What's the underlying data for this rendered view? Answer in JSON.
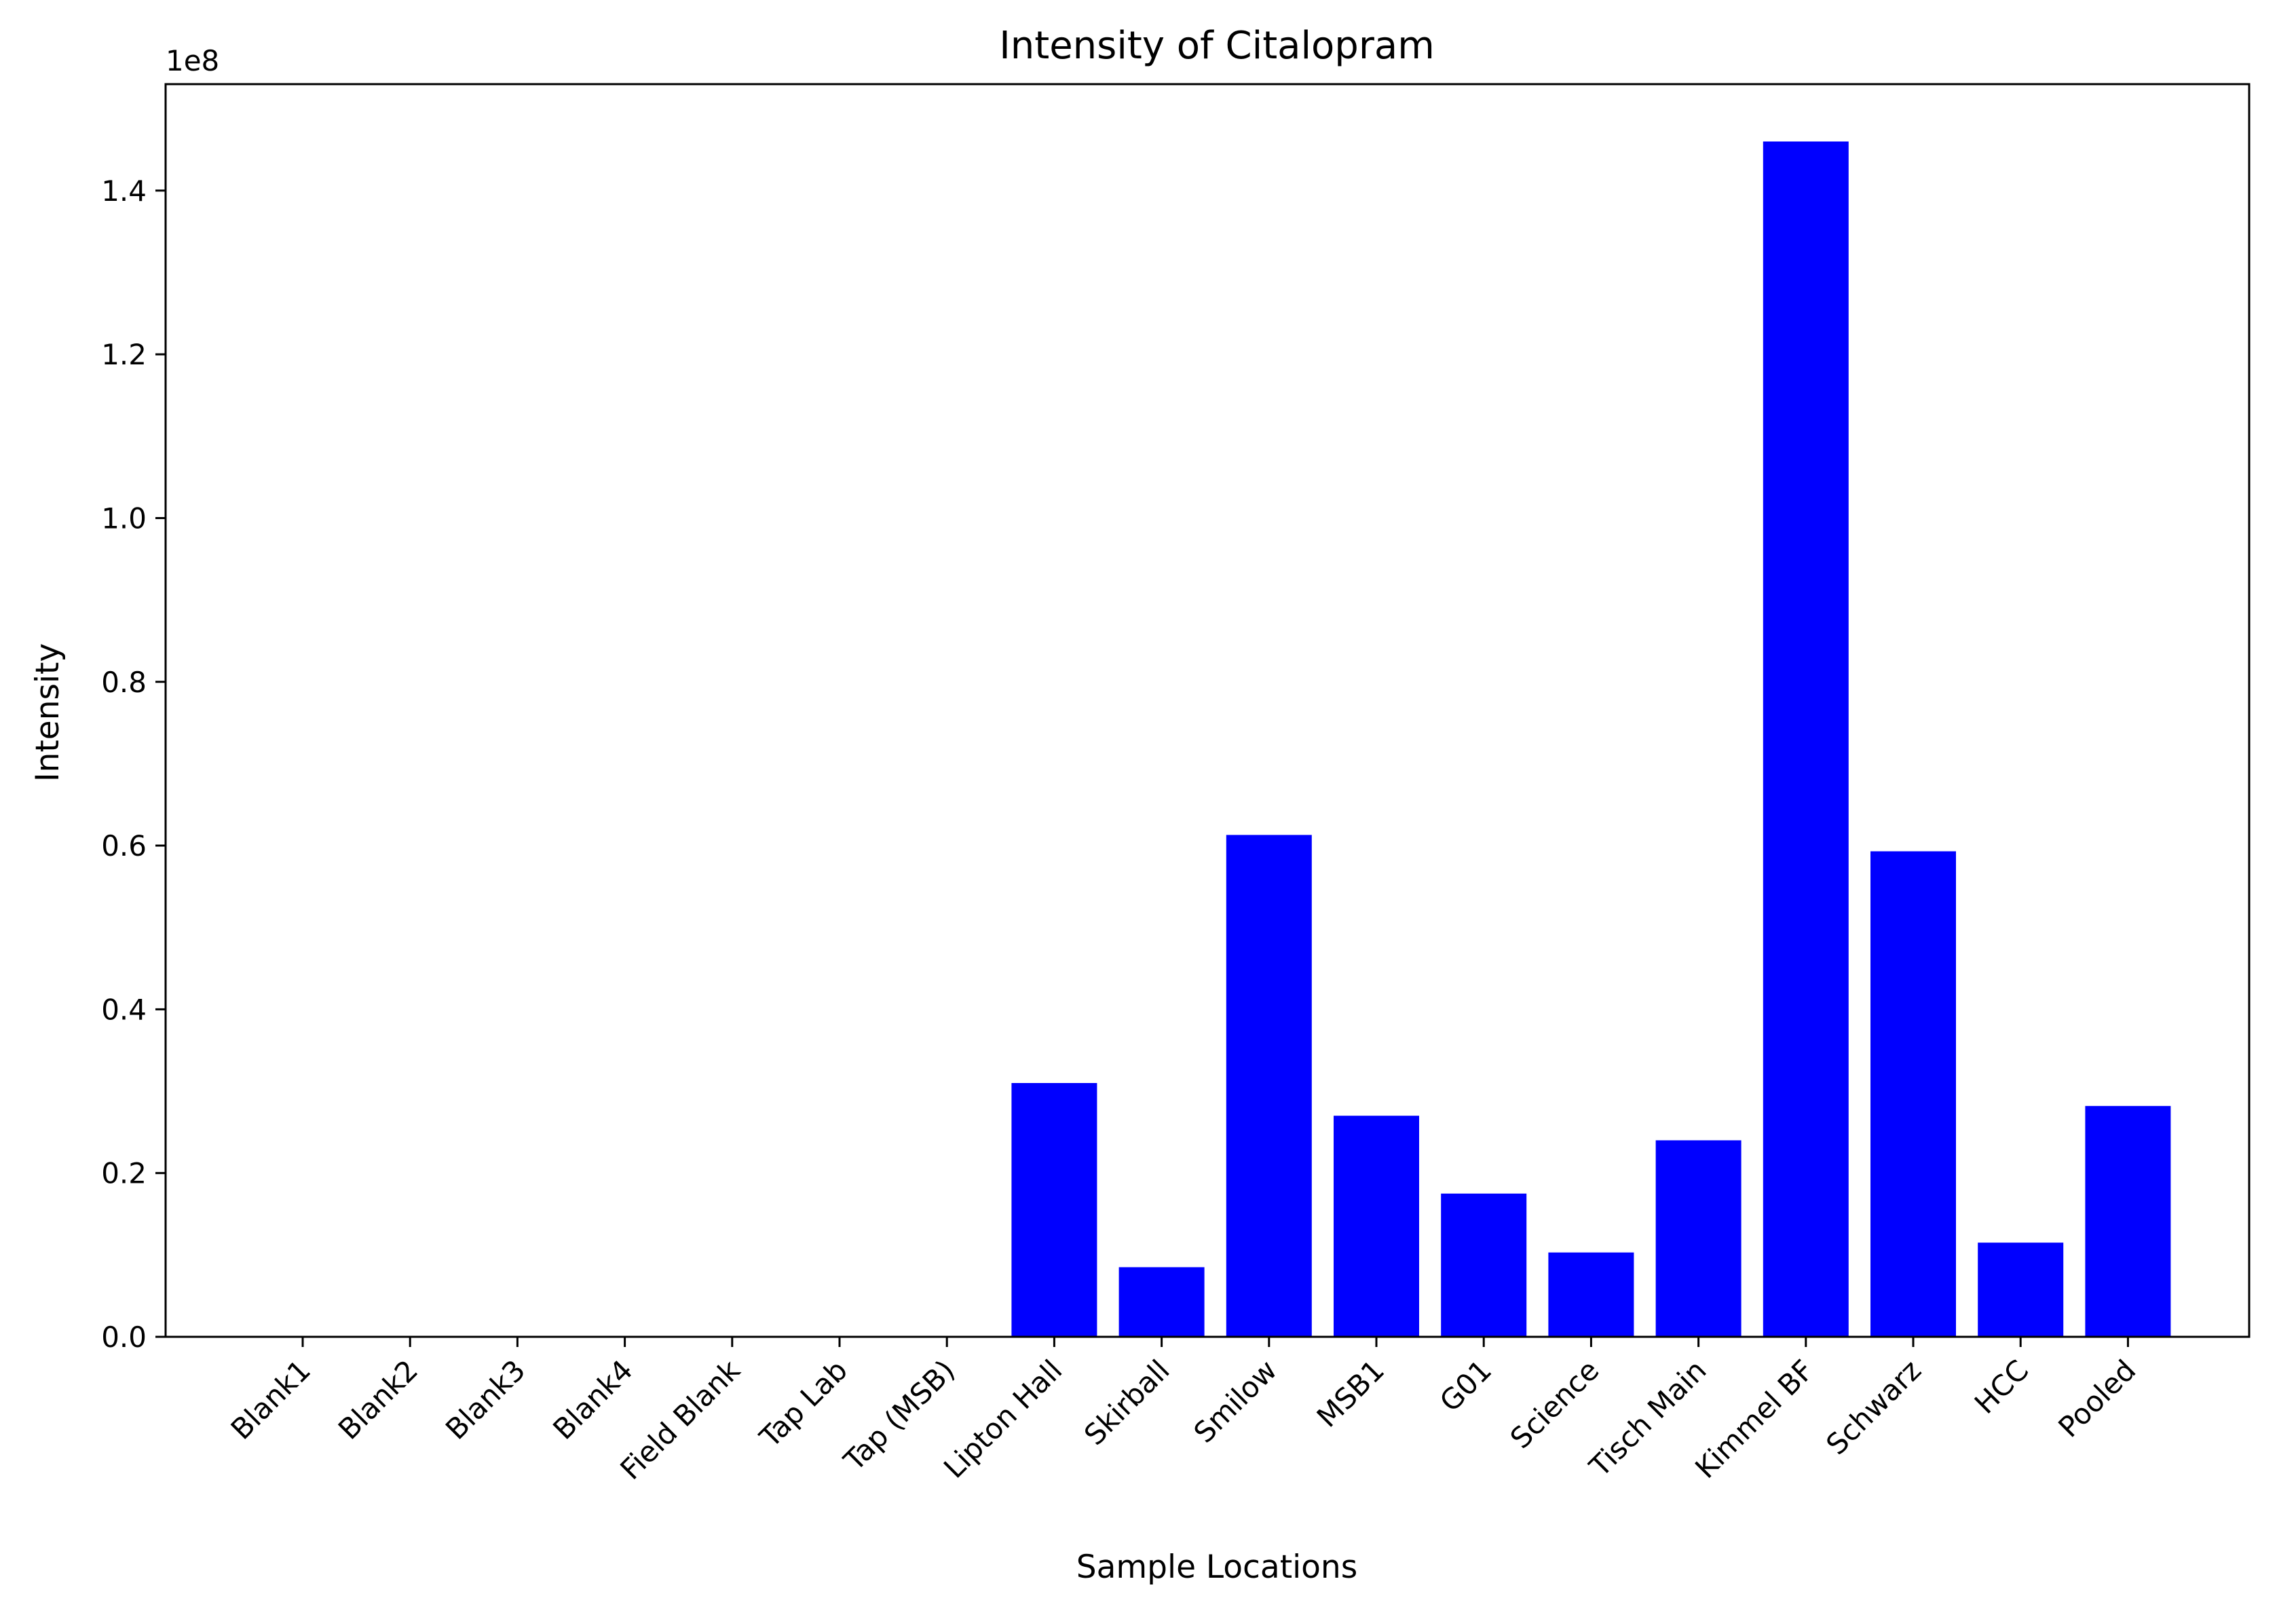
{
  "chart_data": {
    "type": "bar",
    "title": "Intensity of Citalopram",
    "xlabel": "Sample Locations",
    "ylabel": "Intensity",
    "y_offset_label": "1e8",
    "y_scale": 100000000,
    "ylim": [
      0,
      153000000
    ],
    "yticks": [
      0,
      20000000,
      40000000,
      60000000,
      80000000,
      100000000,
      120000000,
      140000000
    ],
    "ytick_labels": [
      "0.0",
      "0.2",
      "0.4",
      "0.6",
      "0.8",
      "1.0",
      "1.2",
      "1.4"
    ],
    "grid": false,
    "bar_color": "#0000ff",
    "categories": [
      "Blank1",
      "Blank2",
      "Blank3",
      "Blank4",
      "Field Blank",
      "Tap Lab",
      "Tap (MSB)",
      "Lipton Hall",
      "Skirball",
      "Smilow",
      "MSB1",
      "G01",
      "Science",
      "Tisch Main",
      "Kimmel BF",
      "Schwarz",
      "HCC",
      "Pooled"
    ],
    "values": [
      0,
      0,
      0,
      0,
      0,
      0,
      0,
      31000000,
      8500000,
      61300000,
      27000000,
      17500000,
      10300000,
      24000000,
      146000000,
      59300000,
      11500000,
      28200000
    ]
  }
}
